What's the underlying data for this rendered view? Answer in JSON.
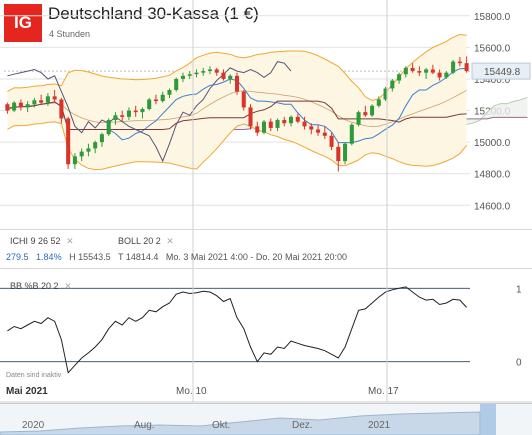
{
  "header": {
    "logo_text": "IG",
    "title": "Deutschland 30-Kassa (1 €)",
    "subtitle": "4 Stunden"
  },
  "indicators": {
    "ichi_label": "ICHI",
    "ichi_params": "9 26 52",
    "boll_label": "BOLL",
    "boll_params": "20 2",
    "bb_label": "BB %B",
    "bb_params": "20 2",
    "close_icon": "close-icon"
  },
  "info_line": {
    "change": "279.5",
    "change_pct": "1.84%",
    "high": "H 15543.5",
    "low": "T 14814.4",
    "range": "Mo. 3 Mai 2021 4:00 - Do. 20 Mai 2021 20:00"
  },
  "inactive_note": "Daten sind inaktiv",
  "x_axis": [
    "Mai 2021",
    "Mo. 10",
    "Mo. 17"
  ],
  "navigator": [
    "2020",
    "Aug.",
    "Okt.",
    "Dez.",
    "2021"
  ],
  "colors": {
    "up": "#2e9b3a",
    "down": "#d9342b",
    "bollinger": "#f0a830",
    "bollinger_fill": "#fdf6e3",
    "price_tag": "#444444",
    "current_price_badge": "#e8eef5"
  },
  "chart_data": [
    {
      "type": "candlestick",
      "title": "Deutschland 30-Kassa (1 €)",
      "timeframe": "4 Stunden",
      "ylim": [
        14450,
        15900
      ],
      "y_ticks": [
        14600,
        14800,
        15000,
        15200,
        15400,
        15600,
        15800
      ],
      "current_price": "15449.8",
      "grid": true,
      "candles": [
        [
          15240,
          15250,
          15180,
          15200
        ],
        [
          15200,
          15260,
          15190,
          15250
        ],
        [
          15250,
          15270,
          15200,
          15220
        ],
        [
          15220,
          15260,
          15190,
          15240
        ],
        [
          15240,
          15280,
          15220,
          15265
        ],
        [
          15265,
          15300,
          15240,
          15250
        ],
        [
          15250,
          15310,
          15230,
          15290
        ],
        [
          15290,
          15330,
          15250,
          15270
        ],
        [
          15270,
          15280,
          15120,
          15150
        ],
        [
          15150,
          15160,
          14830,
          14860
        ],
        [
          14860,
          14930,
          14830,
          14910
        ],
        [
          14910,
          14960,
          14880,
          14940
        ],
        [
          14940,
          14990,
          14910,
          14960
        ],
        [
          14960,
          15010,
          14930,
          15000
        ],
        [
          15000,
          15060,
          14970,
          15050
        ],
        [
          15050,
          15150,
          15040,
          15140
        ],
        [
          15140,
          15190,
          15110,
          15170
        ],
        [
          15170,
          15200,
          15130,
          15160
        ],
        [
          15160,
          15220,
          15140,
          15200
        ],
        [
          15200,
          15230,
          15160,
          15190
        ],
        [
          15190,
          15220,
          15150,
          15210
        ],
        [
          15210,
          15280,
          15200,
          15270
        ],
        [
          15270,
          15300,
          15240,
          15260
        ],
        [
          15260,
          15320,
          15250,
          15300
        ],
        [
          15300,
          15340,
          15280,
          15330
        ],
        [
          15330,
          15410,
          15320,
          15400
        ],
        [
          15400,
          15440,
          15380,
          15420
        ],
        [
          15420,
          15450,
          15400,
          15430
        ],
        [
          15430,
          15460,
          15410,
          15440
        ],
        [
          15440,
          15470,
          15420,
          15450
        ],
        [
          15450,
          15480,
          15430,
          15460
        ],
        [
          15460,
          15470,
          15420,
          15440
        ],
        [
          15440,
          15460,
          15390,
          15400
        ],
        [
          15400,
          15430,
          15370,
          15420
        ],
        [
          15420,
          15440,
          15300,
          15320
        ],
        [
          15320,
          15330,
          15200,
          15220
        ],
        [
          15220,
          15240,
          15080,
          15100
        ],
        [
          15100,
          15130,
          15040,
          15060
        ],
        [
          15060,
          15140,
          15050,
          15130
        ],
        [
          15130,
          15150,
          15070,
          15090
        ],
        [
          15090,
          15150,
          15070,
          15140
        ],
        [
          15140,
          15160,
          15100,
          15120
        ],
        [
          15120,
          15170,
          15100,
          15160
        ],
        [
          15160,
          15180,
          15120,
          15130
        ],
        [
          15130,
          15160,
          15080,
          15100
        ],
        [
          15100,
          15120,
          15050,
          15080
        ],
        [
          15080,
          15110,
          15040,
          15060
        ],
        [
          15060,
          15100,
          15020,
          15040
        ],
        [
          15040,
          15060,
          14950,
          14970
        ],
        [
          14970,
          15000,
          14814,
          14880
        ],
        [
          14880,
          15000,
          14860,
          14990
        ],
        [
          14990,
          15120,
          14980,
          15110
        ],
        [
          15110,
          15200,
          15100,
          15190
        ],
        [
          15190,
          15230,
          15160,
          15170
        ],
        [
          15170,
          15240,
          15160,
          15230
        ],
        [
          15230,
          15290,
          15220,
          15270
        ],
        [
          15270,
          15350,
          15260,
          15340
        ],
        [
          15340,
          15400,
          15320,
          15390
        ],
        [
          15390,
          15440,
          15370,
          15430
        ],
        [
          15430,
          15480,
          15410,
          15470
        ],
        [
          15470,
          15500,
          15440,
          15450
        ],
        [
          15450,
          15480,
          15420,
          15440
        ],
        [
          15440,
          15470,
          15400,
          15460
        ],
        [
          15460,
          15490,
          15430,
          15440
        ],
        [
          15440,
          15460,
          15390,
          15410
        ],
        [
          15410,
          15450,
          15400,
          15440
        ],
        [
          15440,
          15520,
          15430,
          15510
        ],
        [
          15510,
          15540,
          15480,
          15500
        ],
        [
          15500,
          15543,
          15440,
          15449.8
        ]
      ]
    },
    {
      "type": "line",
      "title": "BB %B 20 2",
      "ylim": [
        -0.25,
        1.25
      ],
      "y_ticks": [
        0,
        1
      ],
      "values": [
        0.42,
        0.48,
        0.45,
        0.5,
        0.55,
        0.52,
        0.6,
        0.55,
        0.3,
        -0.15,
        -0.05,
        0.05,
        0.12,
        0.2,
        0.3,
        0.45,
        0.55,
        0.5,
        0.6,
        0.55,
        0.6,
        0.7,
        0.68,
        0.75,
        0.8,
        0.92,
        0.95,
        0.93,
        0.94,
        0.96,
        0.95,
        0.9,
        0.82,
        0.86,
        0.6,
        0.45,
        0.2,
        0.0,
        0.12,
        0.1,
        0.2,
        0.18,
        0.28,
        0.25,
        0.22,
        0.2,
        0.18,
        0.15,
        0.1,
        0.05,
        0.2,
        0.45,
        0.7,
        0.72,
        0.8,
        0.88,
        0.95,
        0.98,
        1.0,
        1.02,
        0.95,
        0.88,
        0.84,
        0.85,
        0.78,
        0.8,
        0.85,
        0.84,
        0.74
      ]
    }
  ]
}
